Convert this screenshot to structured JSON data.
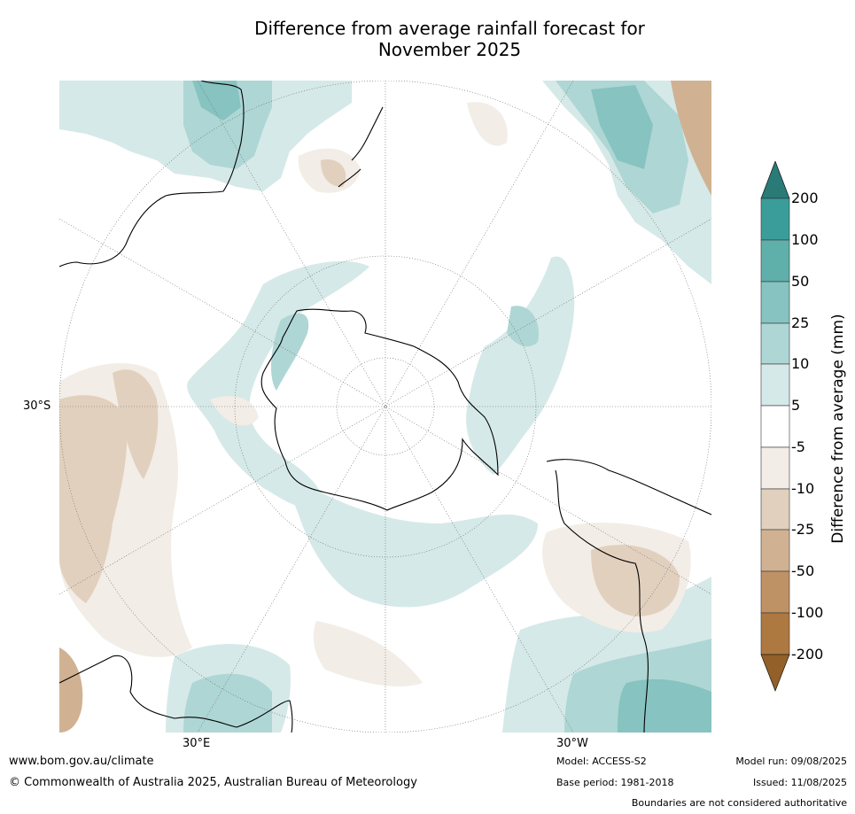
{
  "title_line1": "Difference from average rainfall forecast for",
  "title_line2": "November 2025",
  "axis_labels": {
    "lat": "30°S",
    "lon_east": "30°E",
    "lon_west": "30°W"
  },
  "colorbar": {
    "title": "Difference from average (mm)",
    "ticks": [
      "200",
      "100",
      "50",
      "25",
      "10",
      "5",
      "-5",
      "-10",
      "-25",
      "-50",
      "-100",
      "-200"
    ],
    "colors": {
      "over": "#2a7a78",
      "c200": "#3a9d99",
      "c100": "#5fafab",
      "c50": "#87c3c0",
      "c25": "#aed6d4",
      "c10": "#d5e9e8",
      "c5": "#ffffff",
      "cm5": "#f2ede6",
      "cm10": "#e2d0be",
      "cm25": "#d0b293",
      "cm50": "#bf9266",
      "cm100": "#ae7841",
      "under": "#93602a"
    }
  },
  "footer": {
    "website": "www.bom.gov.au/climate",
    "copyright": "© Commonwealth of Australia 2025, Australian Bureau of Meteorology",
    "model": "Model: ACCESS-S2",
    "base_period": "Base period: 1981-2018",
    "model_run": "Model run: 09/08/2025",
    "issued": "Issued: 11/08/2025",
    "disclaimer": "Boundaries are not considered authoritative"
  }
}
